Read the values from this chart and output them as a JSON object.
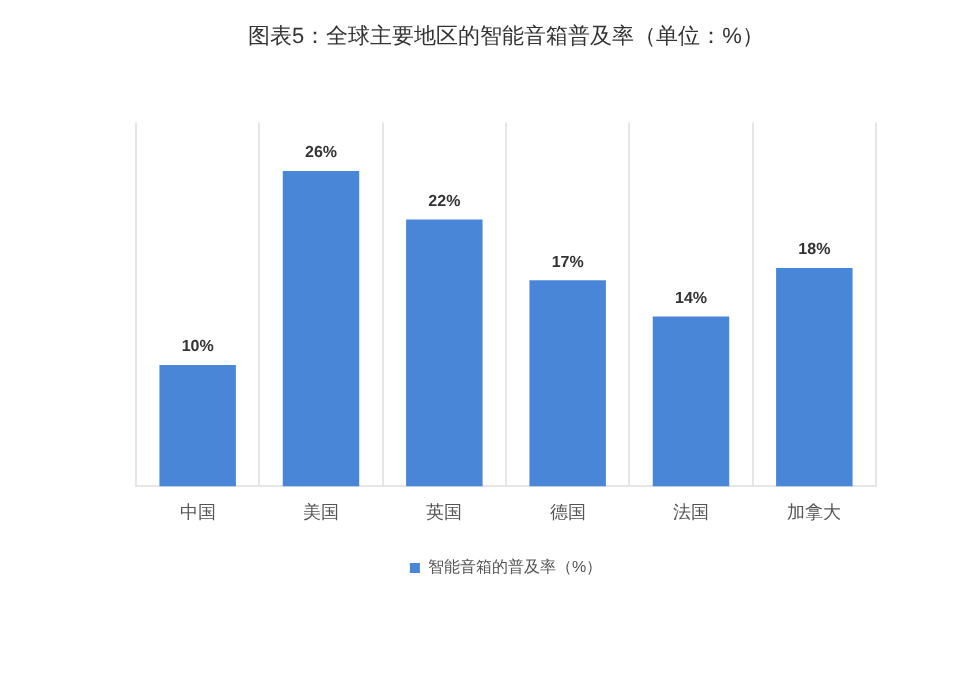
{
  "chart_data": {
    "type": "bar",
    "title": "图表5：全球主要地区的智能音箱普及率（单位：%）",
    "categories": [
      "中国",
      "美国",
      "英国",
      "德国",
      "法国",
      "加拿大"
    ],
    "series": [
      {
        "name": "智能音箱的普及率（%）",
        "color": "#4a86d8",
        "values": [
          10,
          26,
          22,
          17,
          14,
          18
        ],
        "value_labels": [
          "10%",
          "26%",
          "22%",
          "17%",
          "14%",
          "18%"
        ]
      }
    ],
    "grid": "x",
    "legend": "bottom"
  }
}
